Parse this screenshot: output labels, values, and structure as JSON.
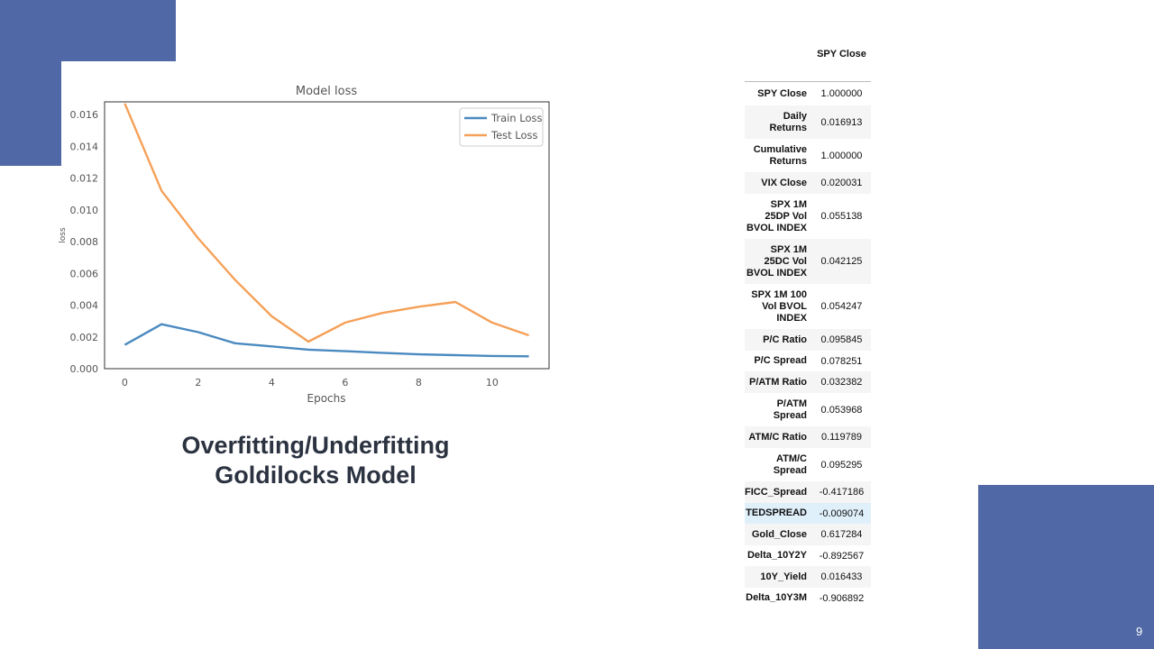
{
  "slide": {
    "caption_line1": "Overfitting/Underfitting",
    "caption_line2": "Goldilocks Model",
    "page_number": "9",
    "accent_color": "#5068a5"
  },
  "chart_data": {
    "type": "line",
    "title": "Model loss",
    "xlabel": "Epochs",
    "ylabel": "loss",
    "x": [
      0,
      1,
      2,
      3,
      4,
      5,
      6,
      7,
      8,
      9,
      10,
      11
    ],
    "xlim": [
      -0.55,
      11.55
    ],
    "ylim": [
      0,
      0.0168
    ],
    "xticks": [
      0,
      2,
      4,
      6,
      8,
      10
    ],
    "yticks": [
      "0.000",
      "0.002",
      "0.004",
      "0.006",
      "0.008",
      "0.010",
      "0.012",
      "0.014",
      "0.016"
    ],
    "legend_position": "top-right",
    "grid": false,
    "series": [
      {
        "name": "Train Loss",
        "color": "#4a8ac0",
        "values": [
          0.0015,
          0.0028,
          0.0023,
          0.0016,
          0.0014,
          0.0012,
          0.0011,
          0.001,
          0.0009,
          0.00085,
          0.0008,
          0.00078
        ]
      },
      {
        "name": "Test Loss",
        "color": "#f5a058",
        "values": [
          0.0167,
          0.0112,
          0.0082,
          0.0056,
          0.0033,
          0.0017,
          0.0029,
          0.0035,
          0.0039,
          0.0042,
          0.0029,
          0.0021
        ]
      }
    ]
  },
  "table": {
    "column_header": "SPY Close",
    "rows": [
      {
        "label": "SPY Close",
        "value": "1.000000"
      },
      {
        "label": "Daily Returns",
        "value": "0.016913"
      },
      {
        "label": "Cumulative Returns",
        "value": "1.000000"
      },
      {
        "label": "VIX Close",
        "value": "0.020031"
      },
      {
        "label": "SPX 1M 25DP Vol BVOL INDEX",
        "value": "0.055138"
      },
      {
        "label": "SPX 1M 25DC Vol BVOL INDEX",
        "value": "0.042125"
      },
      {
        "label": "SPX 1M 100 Vol BVOL INDEX",
        "value": "0.054247"
      },
      {
        "label": "P/C Ratio",
        "value": "0.095845"
      },
      {
        "label": "P/C Spread",
        "value": "0.078251"
      },
      {
        "label": "P/ATM Ratio",
        "value": "0.032382"
      },
      {
        "label": "P/ATM Spread",
        "value": "0.053968"
      },
      {
        "label": "ATM/C Ratio",
        "value": "0.119789"
      },
      {
        "label": "ATM/C Spread",
        "value": "0.095295"
      },
      {
        "label": "FICC_Spread",
        "value": "-0.417186"
      },
      {
        "label": "TEDSPREAD",
        "value": "-0.009074"
      },
      {
        "label": "Gold_Close",
        "value": "0.617284"
      },
      {
        "label": "Delta_10Y2Y",
        "value": "-0.892567"
      },
      {
        "label": "10Y_Yield",
        "value": "0.016433"
      },
      {
        "label": "Delta_10Y3M",
        "value": "-0.906892"
      }
    ]
  }
}
